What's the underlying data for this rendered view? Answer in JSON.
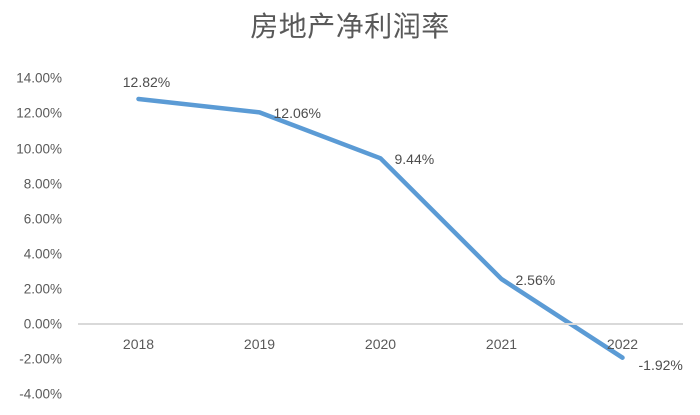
{
  "chart_data": {
    "type": "line",
    "title": "房地产净利润率",
    "categories": [
      "2018",
      "2019",
      "2020",
      "2021",
      "2022"
    ],
    "series": [
      {
        "name": "房地产净利润率",
        "values": [
          12.82,
          12.06,
          9.44,
          2.56,
          -1.92
        ],
        "data_labels": [
          "12.82%",
          "12.06%",
          "9.44%",
          "2.56%",
          "-1.92%"
        ],
        "label_positions": [
          "above",
          "right",
          "right",
          "right",
          "right-below"
        ],
        "color": "#5B9BD5"
      }
    ],
    "xlabel": "",
    "ylabel": "",
    "ylim": [
      -4,
      14
    ],
    "y_ticks": [
      {
        "label": "14.00%",
        "value": 14
      },
      {
        "label": "12.00%",
        "value": 12
      },
      {
        "label": "10.00%",
        "value": 10
      },
      {
        "label": "8.00%",
        "value": 8
      },
      {
        "label": "6.00%",
        "value": 6
      },
      {
        "label": "4.00%",
        "value": 4
      },
      {
        "label": "2.00%",
        "value": 2
      },
      {
        "label": "0.00%",
        "value": 0
      },
      {
        "label": "-2.00%",
        "value": -2
      },
      {
        "label": "-4.00%",
        "value": -4
      }
    ],
    "grid": "zero-line-only",
    "legend": "none",
    "markers": "none"
  },
  "colors": {
    "line": "#5B9BD5",
    "title_text": "#595959",
    "axis_text": "#595959",
    "data_label_text": "#4d4d4d",
    "zero_line": "#D9D9D9",
    "background": "#FFFFFF"
  }
}
